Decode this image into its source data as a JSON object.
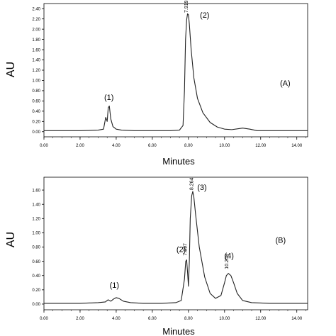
{
  "chart_data": [
    {
      "type": "line",
      "panel_label": "(A)",
      "xlabel": "Minutes",
      "ylabel": "AU",
      "xlim": [
        0,
        14.6
      ],
      "ylim": [
        -0.1,
        2.5
      ],
      "xticks": [
        "0.00",
        "2.00",
        "4.00",
        "6.00",
        "8.00",
        "10.00",
        "12.00",
        "14.00"
      ],
      "yticks": [
        "0.00",
        "0.20",
        "0.40",
        "0.60",
        "0.80",
        "1.00",
        "1.20",
        "1.40",
        "1.60",
        "1.80",
        "2.00",
        "2.20",
        "2.40"
      ],
      "ytick_values": [
        0,
        0.2,
        0.4,
        0.6,
        0.8,
        1.0,
        1.2,
        1.4,
        1.6,
        1.8,
        2.0,
        2.2,
        2.4
      ],
      "xtick_values": [
        0,
        2,
        4,
        6,
        8,
        10,
        12,
        14
      ],
      "grid": false,
      "series": [
        {
          "x": [
            0,
            1,
            2,
            3,
            3.3,
            3.42,
            3.5,
            3.56,
            3.62,
            3.7,
            3.82,
            4.0,
            4.3,
            5,
            6,
            7,
            7.5,
            7.7,
            7.78,
            7.84,
            7.9,
            7.95,
            8.0,
            8.05,
            8.15,
            8.3,
            8.5,
            8.8,
            9.2,
            9.6,
            10.0,
            10.4,
            10.8,
            11.0,
            11.4,
            11.8,
            12.5,
            13.5,
            14.6
          ],
          "y": [
            0.02,
            0.02,
            0.02,
            0.03,
            0.05,
            0.28,
            0.2,
            0.47,
            0.5,
            0.25,
            0.1,
            0.05,
            0.03,
            0.02,
            0.02,
            0.02,
            0.03,
            0.12,
            0.8,
            1.8,
            2.18,
            2.3,
            2.28,
            2.1,
            1.6,
            1.05,
            0.65,
            0.37,
            0.18,
            0.09,
            0.05,
            0.04,
            0.06,
            0.07,
            0.05,
            0.02,
            0.02,
            0.02,
            0.02
          ]
        }
      ],
      "annotations": [
        {
          "text": "(1)",
          "x": 3.6,
          "y": 0.62
        },
        {
          "text": "(2)",
          "x": 8.9,
          "y": 2.22
        },
        {
          "text": "7.919",
          "x": 7.97,
          "y": 2.32,
          "rotated": true
        }
      ]
    },
    {
      "type": "line",
      "panel_label": "(B)",
      "xlabel": "Minutes",
      "ylabel": "AU",
      "xlim": [
        0,
        14.6
      ],
      "ylim": [
        -0.08,
        1.78
      ],
      "xticks": [
        "0.00",
        "2.00",
        "4.00",
        "6.00",
        "8.00",
        "10.00",
        "12.00",
        "14.00"
      ],
      "yticks": [
        "0.00",
        "0.20",
        "0.40",
        "0.60",
        "0.80",
        "1.00",
        "1.20",
        "1.40",
        "1.60"
      ],
      "ytick_values": [
        0,
        0.2,
        0.4,
        0.6,
        0.8,
        1.0,
        1.2,
        1.4,
        1.6
      ],
      "xtick_values": [
        0,
        2,
        4,
        6,
        8,
        10,
        12,
        14
      ],
      "grid": false,
      "series": [
        {
          "x": [
            0,
            1,
            2,
            3,
            3.4,
            3.55,
            3.7,
            3.85,
            4.0,
            4.15,
            4.4,
            4.8,
            5.5,
            6.5,
            7.3,
            7.6,
            7.78,
            7.85,
            7.9,
            7.95,
            8.0,
            8.05,
            8.1,
            8.18,
            8.24,
            8.3,
            8.4,
            8.6,
            8.9,
            9.2,
            9.5,
            9.8,
            10.0,
            10.1,
            10.21,
            10.35,
            10.5,
            10.7,
            11.0,
            11.5,
            12.5,
            13.5,
            14.6
          ],
          "y": [
            0.01,
            0.01,
            0.01,
            0.02,
            0.03,
            0.06,
            0.04,
            0.07,
            0.09,
            0.08,
            0.04,
            0.02,
            0.01,
            0.01,
            0.02,
            0.05,
            0.35,
            0.6,
            0.62,
            0.45,
            0.25,
            0.6,
            1.2,
            1.52,
            1.58,
            1.5,
            1.25,
            0.8,
            0.38,
            0.15,
            0.08,
            0.12,
            0.3,
            0.4,
            0.43,
            0.4,
            0.3,
            0.15,
            0.05,
            0.02,
            0.01,
            0.01,
            0.01
          ]
        }
      ],
      "annotations": [
        {
          "text": "(1)",
          "x": 3.9,
          "y": 0.23
        },
        {
          "text": "(2)",
          "x": 7.6,
          "y": 0.73
        },
        {
          "text": "(3)",
          "x": 8.75,
          "y": 1.6
        },
        {
          "text": "(4)",
          "x": 10.25,
          "y": 0.64
        },
        {
          "text": "(B)",
          "x": 13.1,
          "y": 0.86
        },
        {
          "text": "7.897",
          "x": 7.9,
          "y": 0.68,
          "rotated": true
        },
        {
          "text": "8.264",
          "x": 8.26,
          "y": 1.6,
          "rotated": true
        },
        {
          "text": "10.209",
          "x": 10.21,
          "y": 0.49,
          "rotated": true
        }
      ]
    }
  ]
}
